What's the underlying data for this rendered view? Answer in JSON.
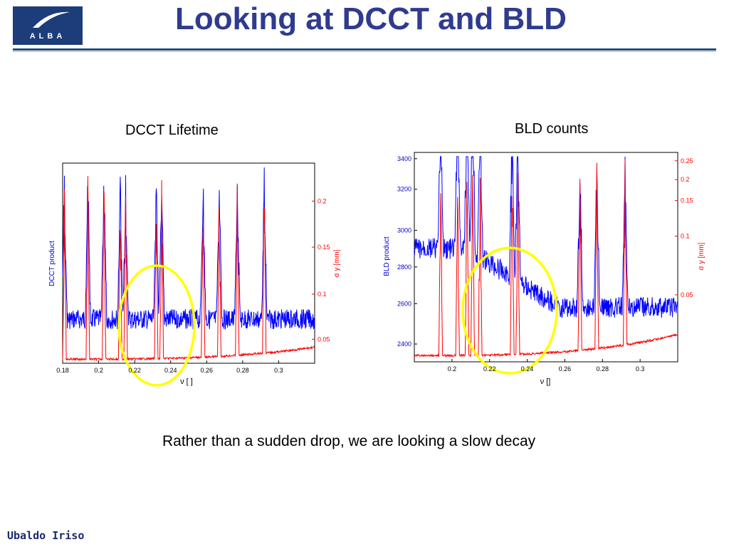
{
  "header": {
    "title": "Looking at DCCT and BLD",
    "logo_text": "ALBA"
  },
  "labels": {
    "left_plot": "DCCT Lifetime",
    "right_plot": "BLD counts"
  },
  "caption": "Rather than a sudden drop, we are looking a slow decay",
  "footer": {
    "author": "Ubaldo Iriso"
  },
  "colors": {
    "title": "#2e3b8f",
    "series_blue": "#0000ff",
    "series_red": "#ff0000",
    "highlight": "#ffff00"
  },
  "chart_data": [
    {
      "type": "line",
      "xlabel": "ν [ ]",
      "ylabel": "DCCT product",
      "y2label": "σ y [mm]",
      "xlim": [
        0.18,
        0.32
      ],
      "xticks": [
        "0.18",
        "0.2",
        "0.22",
        "0.24",
        "0.26",
        "0.28",
        "0.3"
      ],
      "y2ticks": [
        "0.05",
        "0.1",
        "0.15",
        "0.2"
      ],
      "series": [
        {
          "color": "#0000ff",
          "values_desc": "noisy baseline"
        },
        {
          "color": "#ff0000",
          "values_desc": "spiky"
        }
      ],
      "peaks_x": [
        0.181,
        0.194,
        0.203,
        0.212,
        0.215,
        0.232,
        0.235,
        0.258,
        0.267,
        0.277,
        0.292
      ],
      "highlight_x": [
        0.214,
        0.245
      ]
    },
    {
      "type": "line",
      "xlabel": "ν []",
      "ylabel": "BLD product",
      "y2label": "σ y [mm]",
      "xlim": [
        0.18,
        0.32
      ],
      "xticks": [
        "0.2",
        "0.22",
        "0.24",
        "0.26",
        "0.28",
        "0.3"
      ],
      "yticks": [
        "2400",
        "2600",
        "2800",
        "3000",
        "3200",
        "3400"
      ],
      "y2ticks": [
        "0.05",
        "0.1",
        "0.15",
        "0.2",
        "0.25"
      ],
      "series": [
        {
          "color": "#0000ff",
          "values_desc": "decaying noisy"
        },
        {
          "color": "#ff0000",
          "values_desc": "spiky"
        }
      ],
      "peaks_x": [
        0.194,
        0.203,
        0.208,
        0.211,
        0.215,
        0.232,
        0.235,
        0.268,
        0.277,
        0.292
      ],
      "highlight_x": [
        0.207,
        0.245
      ]
    }
  ]
}
